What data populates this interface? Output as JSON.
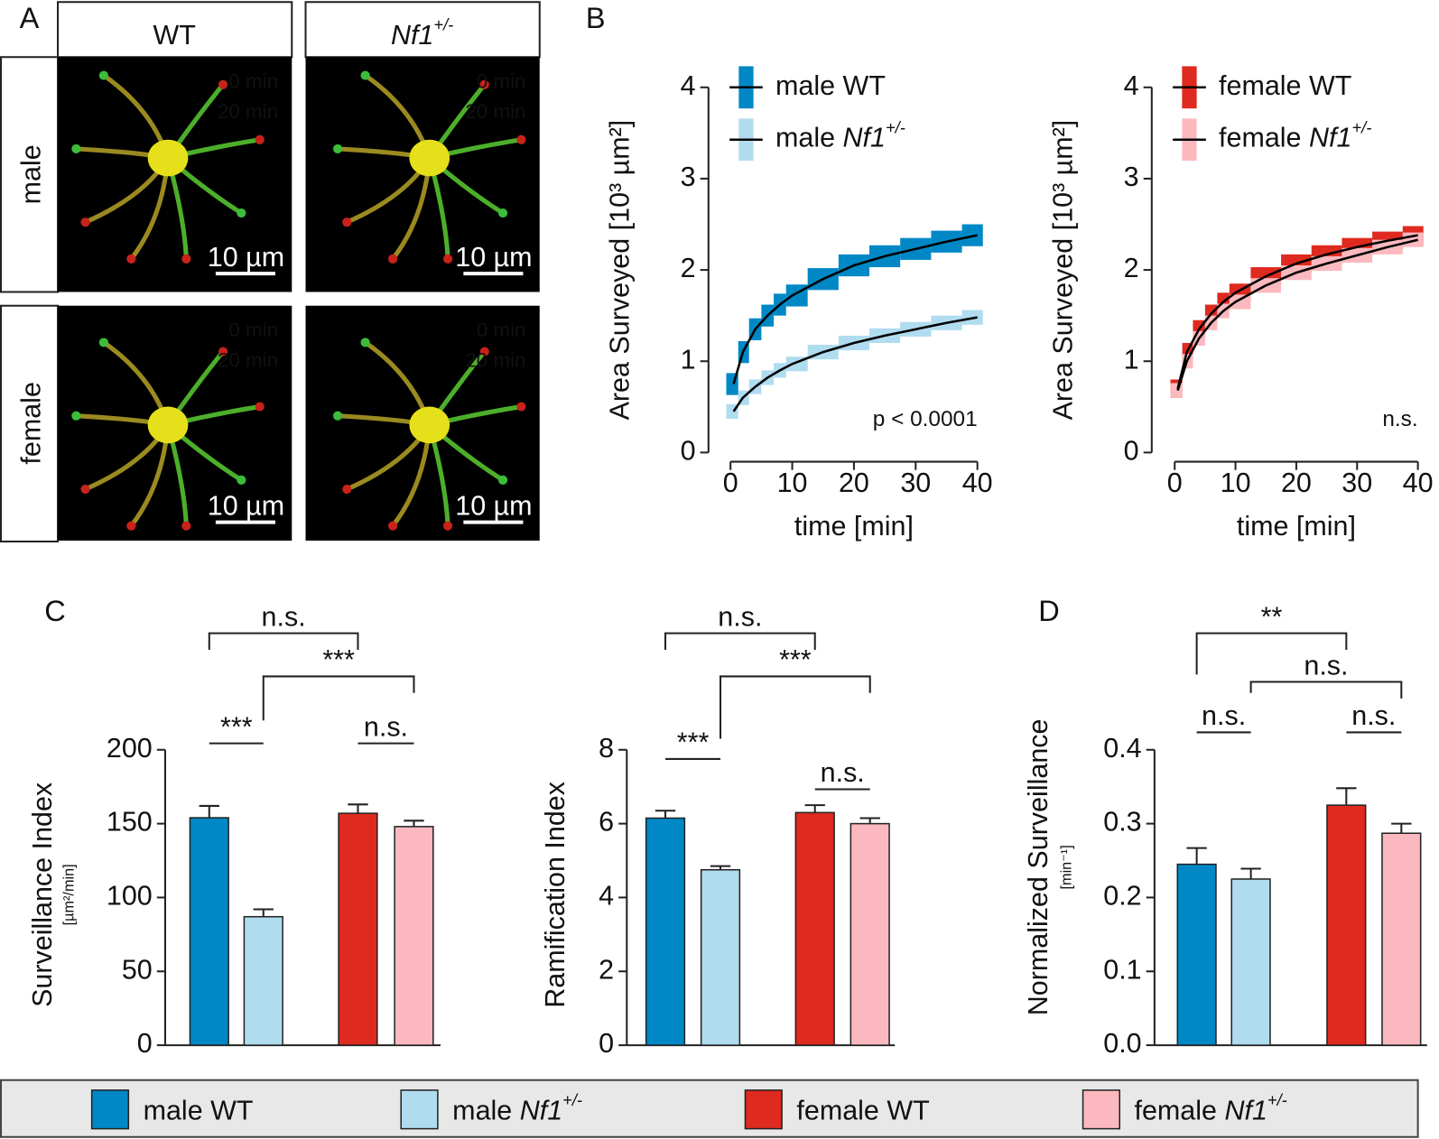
{
  "letters": [
    "A",
    "B",
    "C",
    "D"
  ],
  "panel_a": {
    "columns": [
      "WT",
      "Nf1+/-"
    ],
    "rows": [
      "male",
      "female"
    ],
    "time_labels": [
      "0 min",
      "20 min"
    ],
    "scale_bar": "10 µm"
  },
  "chart_data": [
    {
      "type": "line",
      "x": [
        0.5,
        2,
        4,
        6,
        8,
        10,
        15,
        20,
        25,
        30,
        35,
        40
      ],
      "series": [
        {
          "name": "male WT",
          "color": "#0088c6",
          "values": [
            0.75,
            1.1,
            1.35,
            1.5,
            1.62,
            1.72,
            1.9,
            2.05,
            2.15,
            2.23,
            2.31,
            2.38
          ],
          "errors": [
            0.12,
            0.12,
            0.12,
            0.12,
            0.12,
            0.12,
            0.12,
            0.12,
            0.12,
            0.12,
            0.12,
            0.12
          ]
        },
        {
          "name": "male Nf1+/-",
          "color": "#b0dcf0",
          "values": [
            0.45,
            0.6,
            0.72,
            0.82,
            0.9,
            0.97,
            1.1,
            1.2,
            1.28,
            1.35,
            1.42,
            1.48
          ],
          "errors": [
            0.08,
            0.08,
            0.08,
            0.08,
            0.08,
            0.08,
            0.08,
            0.08,
            0.08,
            0.08,
            0.08,
            0.08
          ]
        }
      ],
      "line_color": "#000000",
      "xlim": [
        0,
        40
      ],
      "xticks": [
        0,
        10,
        20,
        30,
        40
      ],
      "ylim": [
        0,
        4
      ],
      "yticks": [
        0,
        1,
        2,
        3,
        4
      ],
      "xlabel": "time [min]",
      "ylabel": "Area Surveyed [10³ µm²]",
      "annotation": "p < 0.0001",
      "legend": "upper left"
    },
    {
      "type": "line",
      "x": [
        0.5,
        2,
        4,
        6,
        8,
        10,
        15,
        20,
        25,
        30,
        35,
        40
      ],
      "series": [
        {
          "name": "female WT",
          "color": "#de2a1f",
          "values": [
            0.7,
            1.1,
            1.35,
            1.52,
            1.65,
            1.75,
            1.93,
            2.07,
            2.17,
            2.25,
            2.32,
            2.38
          ],
          "errors": [
            0.1,
            0.1,
            0.1,
            0.1,
            0.1,
            0.1,
            0.1,
            0.1,
            0.1,
            0.1,
            0.1,
            0.1
          ]
        },
        {
          "name": "female Nf1+/-",
          "color": "#fbb9bf",
          "values": [
            0.68,
            1.0,
            1.25,
            1.42,
            1.55,
            1.65,
            1.83,
            1.97,
            2.07,
            2.16,
            2.25,
            2.33
          ],
          "errors": [
            0.08,
            0.08,
            0.08,
            0.08,
            0.08,
            0.08,
            0.08,
            0.08,
            0.08,
            0.08,
            0.08,
            0.08
          ]
        }
      ],
      "line_color": "#000000",
      "xlim": [
        0,
        40
      ],
      "xticks": [
        0,
        10,
        20,
        30,
        40
      ],
      "ylim": [
        0,
        4
      ],
      "yticks": [
        0,
        1,
        2,
        3,
        4
      ],
      "xlabel": "time [min]",
      "ylabel": "Area Surveyed [10³ µm²]",
      "annotation": "n.s.",
      "legend": "upper left"
    },
    {
      "type": "bar",
      "values": [
        154,
        87,
        157,
        148
      ],
      "errors": [
        8,
        5,
        6,
        4
      ],
      "colors": [
        "#0088c6",
        "#b0dcf0",
        "#de2a1f",
        "#fbb9bf"
      ],
      "ylim": [
        0,
        200
      ],
      "yticks": [
        0,
        50,
        100,
        150,
        200
      ],
      "ylabel": "Surveillance Index",
      "ylabel_unit": "[µm²/min]",
      "brackets": [
        {
          "between": [
            0,
            1
          ],
          "label": "***"
        },
        {
          "between": [
            2,
            3
          ],
          "label": "n.s."
        },
        {
          "between": [
            1,
            3
          ],
          "label": "***"
        },
        {
          "between": [
            0,
            2
          ],
          "label": "n.s."
        }
      ]
    },
    {
      "type": "bar",
      "values": [
        6.15,
        4.75,
        6.3,
        6.0
      ],
      "errors": [
        0.2,
        0.1,
        0.2,
        0.15
      ],
      "colors": [
        "#0088c6",
        "#b0dcf0",
        "#de2a1f",
        "#fbb9bf"
      ],
      "ylim": [
        0,
        8
      ],
      "yticks": [
        0,
        2,
        4,
        6,
        8
      ],
      "ylabel": "Ramification Index",
      "brackets": [
        {
          "between": [
            0,
            1
          ],
          "label": "***"
        },
        {
          "between": [
            2,
            3
          ],
          "label": "n.s."
        },
        {
          "between": [
            1,
            3
          ],
          "label": "***"
        },
        {
          "between": [
            0,
            2
          ],
          "label": "n.s."
        }
      ]
    },
    {
      "type": "bar",
      "values": [
        0.245,
        0.225,
        0.325,
        0.287
      ],
      "errors": [
        0.022,
        0.014,
        0.023,
        0.013
      ],
      "colors": [
        "#0088c6",
        "#b0dcf0",
        "#de2a1f",
        "#fbb9bf"
      ],
      "ylim": [
        0,
        0.4
      ],
      "yticks": [
        {
          "value": 0,
          "label": "0.0"
        },
        0.1,
        0.2,
        0.3,
        0.4
      ],
      "ylabel": "Normalized Surveillance",
      "ylabel_unit": "[min⁻¹]",
      "brackets": [
        {
          "between": [
            0,
            2
          ],
          "label": "**"
        },
        {
          "between": [
            1,
            3
          ],
          "label": "n.s."
        },
        {
          "between": [
            0,
            1
          ],
          "label": "n.s."
        },
        {
          "between": [
            2,
            3
          ],
          "label": "n.s."
        }
      ]
    }
  ],
  "legend": {
    "names": [
      "male WT",
      "male Nf1+/-",
      "female WT",
      "female Nf1+/-"
    ],
    "colors": [
      "#0088c6",
      "#b0dcf0",
      "#de2a1f",
      "#fbb9bf"
    ]
  }
}
